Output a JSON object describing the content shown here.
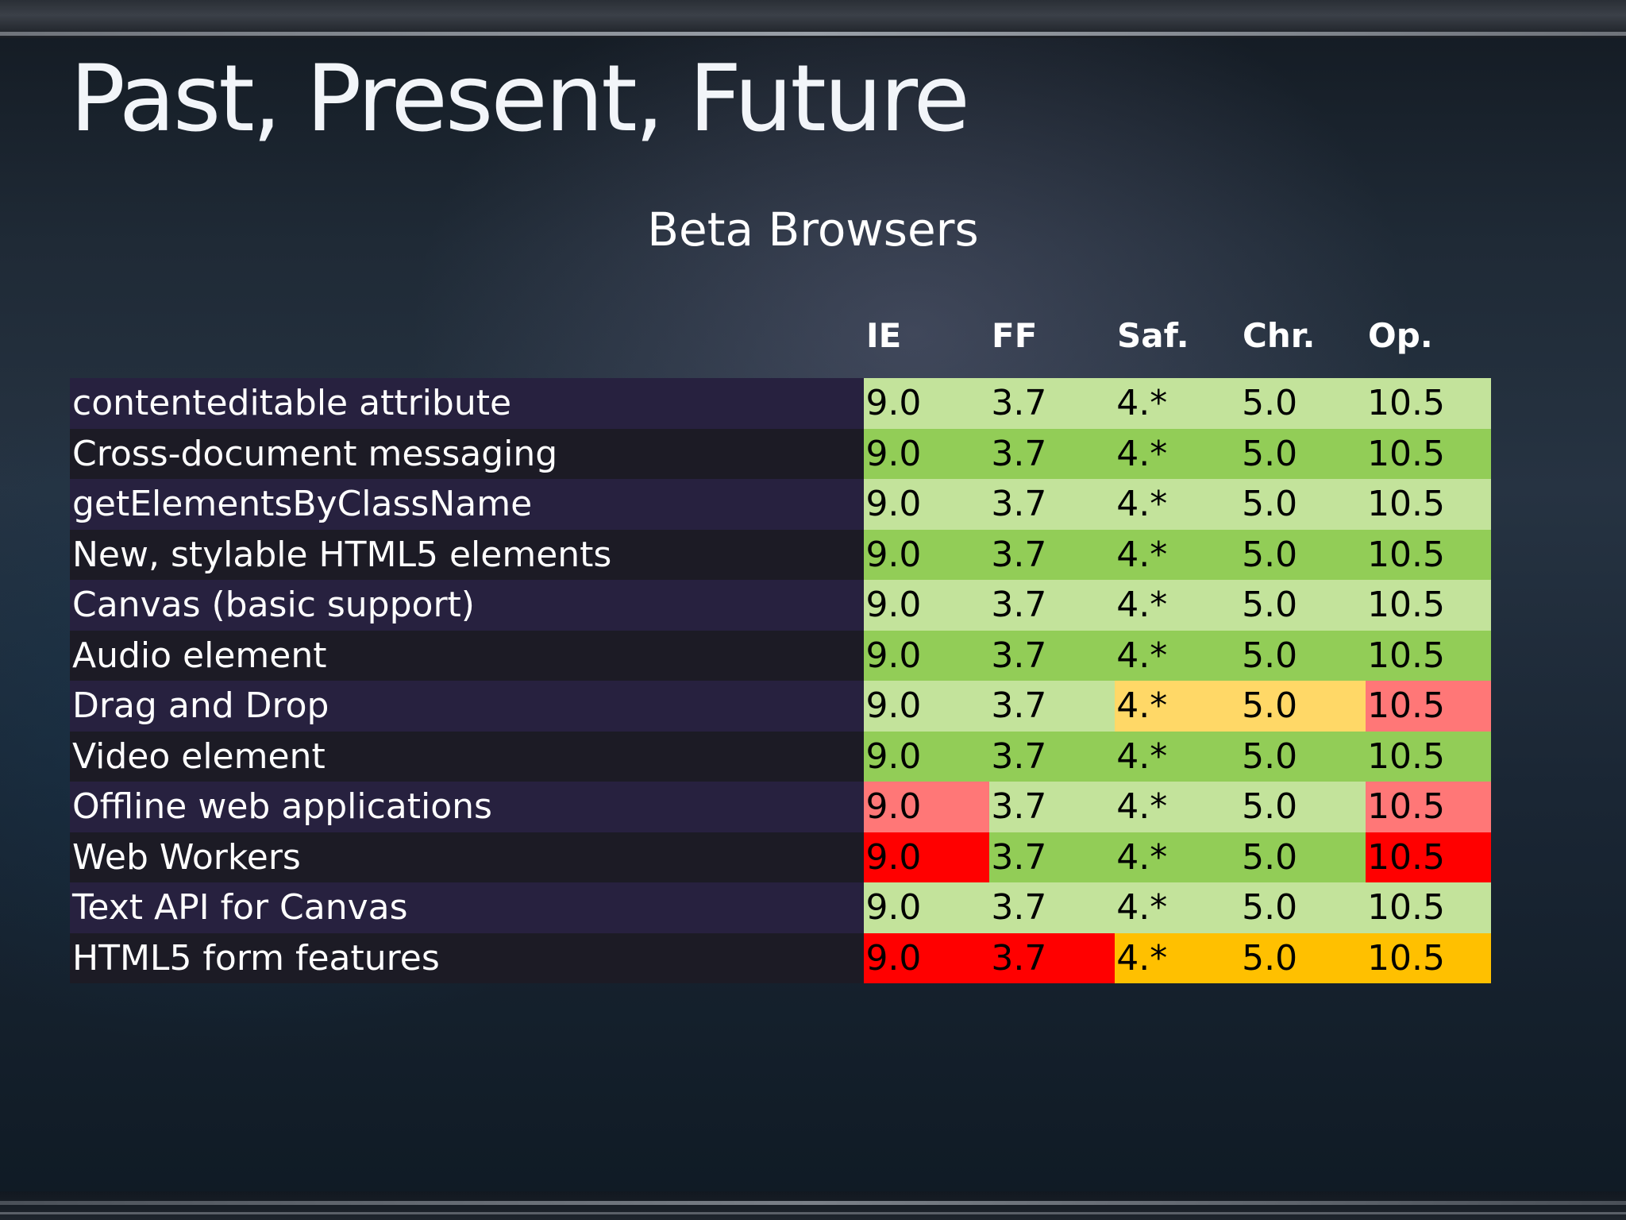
{
  "slide": {
    "title": "Past, Present, Future",
    "subtitle": "Beta Browsers"
  },
  "columns": [
    "IE",
    "FF",
    "Saf.",
    "Chr.",
    "Op."
  ],
  "status_colors": {
    "full_light": "#c3e39b",
    "full_dark": "#92cd57",
    "partial_red": "#ff7777",
    "none_red": "#ff0000",
    "yellow": "#ffd867",
    "orange": "#ffc000"
  },
  "rows": [
    {
      "feature": "contenteditable attribute",
      "cells": [
        {
          "value": "9.0",
          "color": "#c3e39b"
        },
        {
          "value": "3.7",
          "color": "#c3e39b"
        },
        {
          "value": "4.*",
          "color": "#c3e39b"
        },
        {
          "value": "5.0",
          "color": "#c3e39b"
        },
        {
          "value": "10.5",
          "color": "#c3e39b"
        }
      ]
    },
    {
      "feature": "Cross-document messaging",
      "cells": [
        {
          "value": "9.0",
          "color": "#92cd57"
        },
        {
          "value": "3.7",
          "color": "#92cd57"
        },
        {
          "value": "4.*",
          "color": "#92cd57"
        },
        {
          "value": "5.0",
          "color": "#92cd57"
        },
        {
          "value": "10.5",
          "color": "#92cd57"
        }
      ]
    },
    {
      "feature": "getElementsByClassName",
      "cells": [
        {
          "value": "9.0",
          "color": "#c3e39b"
        },
        {
          "value": "3.7",
          "color": "#c3e39b"
        },
        {
          "value": "4.*",
          "color": "#c3e39b"
        },
        {
          "value": "5.0",
          "color": "#c3e39b"
        },
        {
          "value": "10.5",
          "color": "#c3e39b"
        }
      ]
    },
    {
      "feature": "New, stylable HTML5 elements",
      "cells": [
        {
          "value": "9.0",
          "color": "#92cd57"
        },
        {
          "value": "3.7",
          "color": "#92cd57"
        },
        {
          "value": "4.*",
          "color": "#92cd57"
        },
        {
          "value": "5.0",
          "color": "#92cd57"
        },
        {
          "value": "10.5",
          "color": "#92cd57"
        }
      ]
    },
    {
      "feature": "Canvas (basic support)",
      "cells": [
        {
          "value": "9.0",
          "color": "#c3e39b"
        },
        {
          "value": "3.7",
          "color": "#c3e39b"
        },
        {
          "value": "4.*",
          "color": "#c3e39b"
        },
        {
          "value": "5.0",
          "color": "#c3e39b"
        },
        {
          "value": "10.5",
          "color": "#c3e39b"
        }
      ]
    },
    {
      "feature": "Audio element",
      "cells": [
        {
          "value": "9.0",
          "color": "#92cd57"
        },
        {
          "value": "3.7",
          "color": "#92cd57"
        },
        {
          "value": "4.*",
          "color": "#92cd57"
        },
        {
          "value": "5.0",
          "color": "#92cd57"
        },
        {
          "value": "10.5",
          "color": "#92cd57"
        }
      ]
    },
    {
      "feature": "Drag and Drop",
      "cells": [
        {
          "value": "9.0",
          "color": "#c3e39b"
        },
        {
          "value": "3.7",
          "color": "#c3e39b"
        },
        {
          "value": "4.*",
          "color": "#ffd867"
        },
        {
          "value": "5.0",
          "color": "#ffd867"
        },
        {
          "value": "10.5",
          "color": "#ff7777"
        }
      ]
    },
    {
      "feature": "Video element",
      "cells": [
        {
          "value": "9.0",
          "color": "#92cd57"
        },
        {
          "value": "3.7",
          "color": "#92cd57"
        },
        {
          "value": "4.*",
          "color": "#92cd57"
        },
        {
          "value": "5.0",
          "color": "#92cd57"
        },
        {
          "value": "10.5",
          "color": "#92cd57"
        }
      ]
    },
    {
      "feature": "Offline web applications",
      "cells": [
        {
          "value": "9.0",
          "color": "#ff7777"
        },
        {
          "value": "3.7",
          "color": "#c3e39b"
        },
        {
          "value": "4.*",
          "color": "#c3e39b"
        },
        {
          "value": "5.0",
          "color": "#c3e39b"
        },
        {
          "value": "10.5",
          "color": "#ff7777"
        }
      ]
    },
    {
      "feature": "Web Workers",
      "cells": [
        {
          "value": "9.0",
          "color": "#ff0000"
        },
        {
          "value": "3.7",
          "color": "#92cd57"
        },
        {
          "value": "4.*",
          "color": "#92cd57"
        },
        {
          "value": "5.0",
          "color": "#92cd57"
        },
        {
          "value": "10.5",
          "color": "#ff0000"
        }
      ]
    },
    {
      "feature": "Text API for Canvas",
      "cells": [
        {
          "value": "9.0",
          "color": "#c3e39b"
        },
        {
          "value": "3.7",
          "color": "#c3e39b"
        },
        {
          "value": "4.*",
          "color": "#c3e39b"
        },
        {
          "value": "5.0",
          "color": "#c3e39b"
        },
        {
          "value": "10.5",
          "color": "#c3e39b"
        }
      ]
    },
    {
      "feature": "HTML5 form features",
      "cells": [
        {
          "value": "9.0",
          "color": "#ff0000"
        },
        {
          "value": "3.7",
          "color": "#ff0000"
        },
        {
          "value": "4.*",
          "color": "#ffc000"
        },
        {
          "value": "5.0",
          "color": "#ffc000"
        },
        {
          "value": "10.5",
          "color": "#ffc000"
        }
      ]
    }
  ]
}
